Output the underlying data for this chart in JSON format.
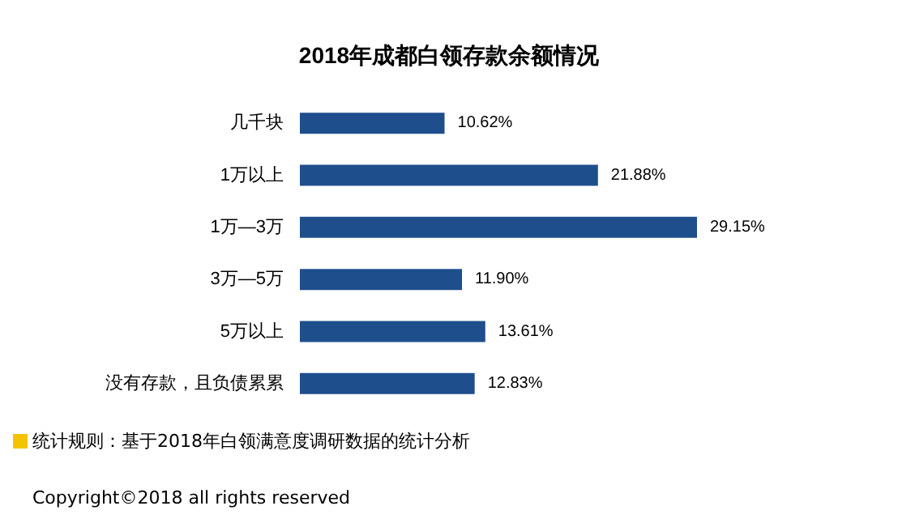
{
  "chart_data": {
    "type": "bar",
    "orientation": "horizontal",
    "title": "2018年成都白领存款余额情况",
    "categories": [
      "几千块",
      "1万以上",
      "1万—3万",
      "3万—5万",
      "5万以上",
      "没有存款，且负债累累"
    ],
    "values": [
      10.62,
      21.88,
      29.15,
      11.9,
      13.61,
      12.83
    ],
    "value_labels": [
      "10.62%",
      "21.88%",
      "29.15%",
      "11.90%",
      "13.61%",
      "12.83%"
    ],
    "color": "#1f4e8c",
    "annotations": [
      "统计规则：基于2018年白领满意度调研数据的统计分析",
      "Copyright©2018 all rights reserved"
    ]
  }
}
